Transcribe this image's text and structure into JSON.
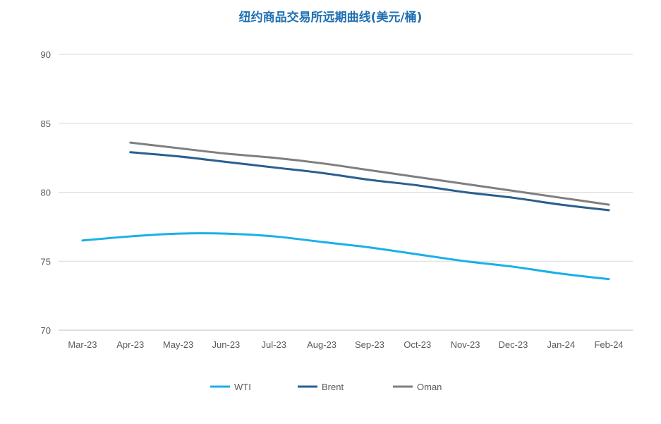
{
  "chart_data": {
    "type": "line",
    "title": "纽约商品交易所远期曲线(美元/桶)",
    "xlabel": "",
    "ylabel": "",
    "categories": [
      "Mar-23",
      "Apr-23",
      "May-23",
      "Jun-23",
      "Jul-23",
      "Aug-23",
      "Sep-23",
      "Oct-23",
      "Nov-23",
      "Dec-23",
      "Jan-24",
      "Feb-24"
    ],
    "ylim": [
      70,
      90
    ],
    "yticks": [
      70,
      75,
      80,
      85,
      90
    ],
    "grid": true,
    "legend_position": "bottom",
    "series": [
      {
        "name": "WTI",
        "color": "#1ab0e8",
        "values": [
          76.5,
          76.8,
          77.0,
          77.0,
          76.8,
          76.4,
          76.0,
          75.5,
          75.0,
          74.6,
          74.1,
          73.7
        ]
      },
      {
        "name": "Brent",
        "color": "#2a5f8f",
        "values": [
          null,
          82.9,
          82.6,
          82.2,
          81.8,
          81.4,
          80.9,
          80.5,
          80.0,
          79.6,
          79.1,
          78.7
        ]
      },
      {
        "name": "Oman",
        "color": "#7f7f7f",
        "values": [
          null,
          83.6,
          83.2,
          82.8,
          82.5,
          82.1,
          81.6,
          81.1,
          80.6,
          80.1,
          79.6,
          79.1
        ]
      }
    ]
  }
}
